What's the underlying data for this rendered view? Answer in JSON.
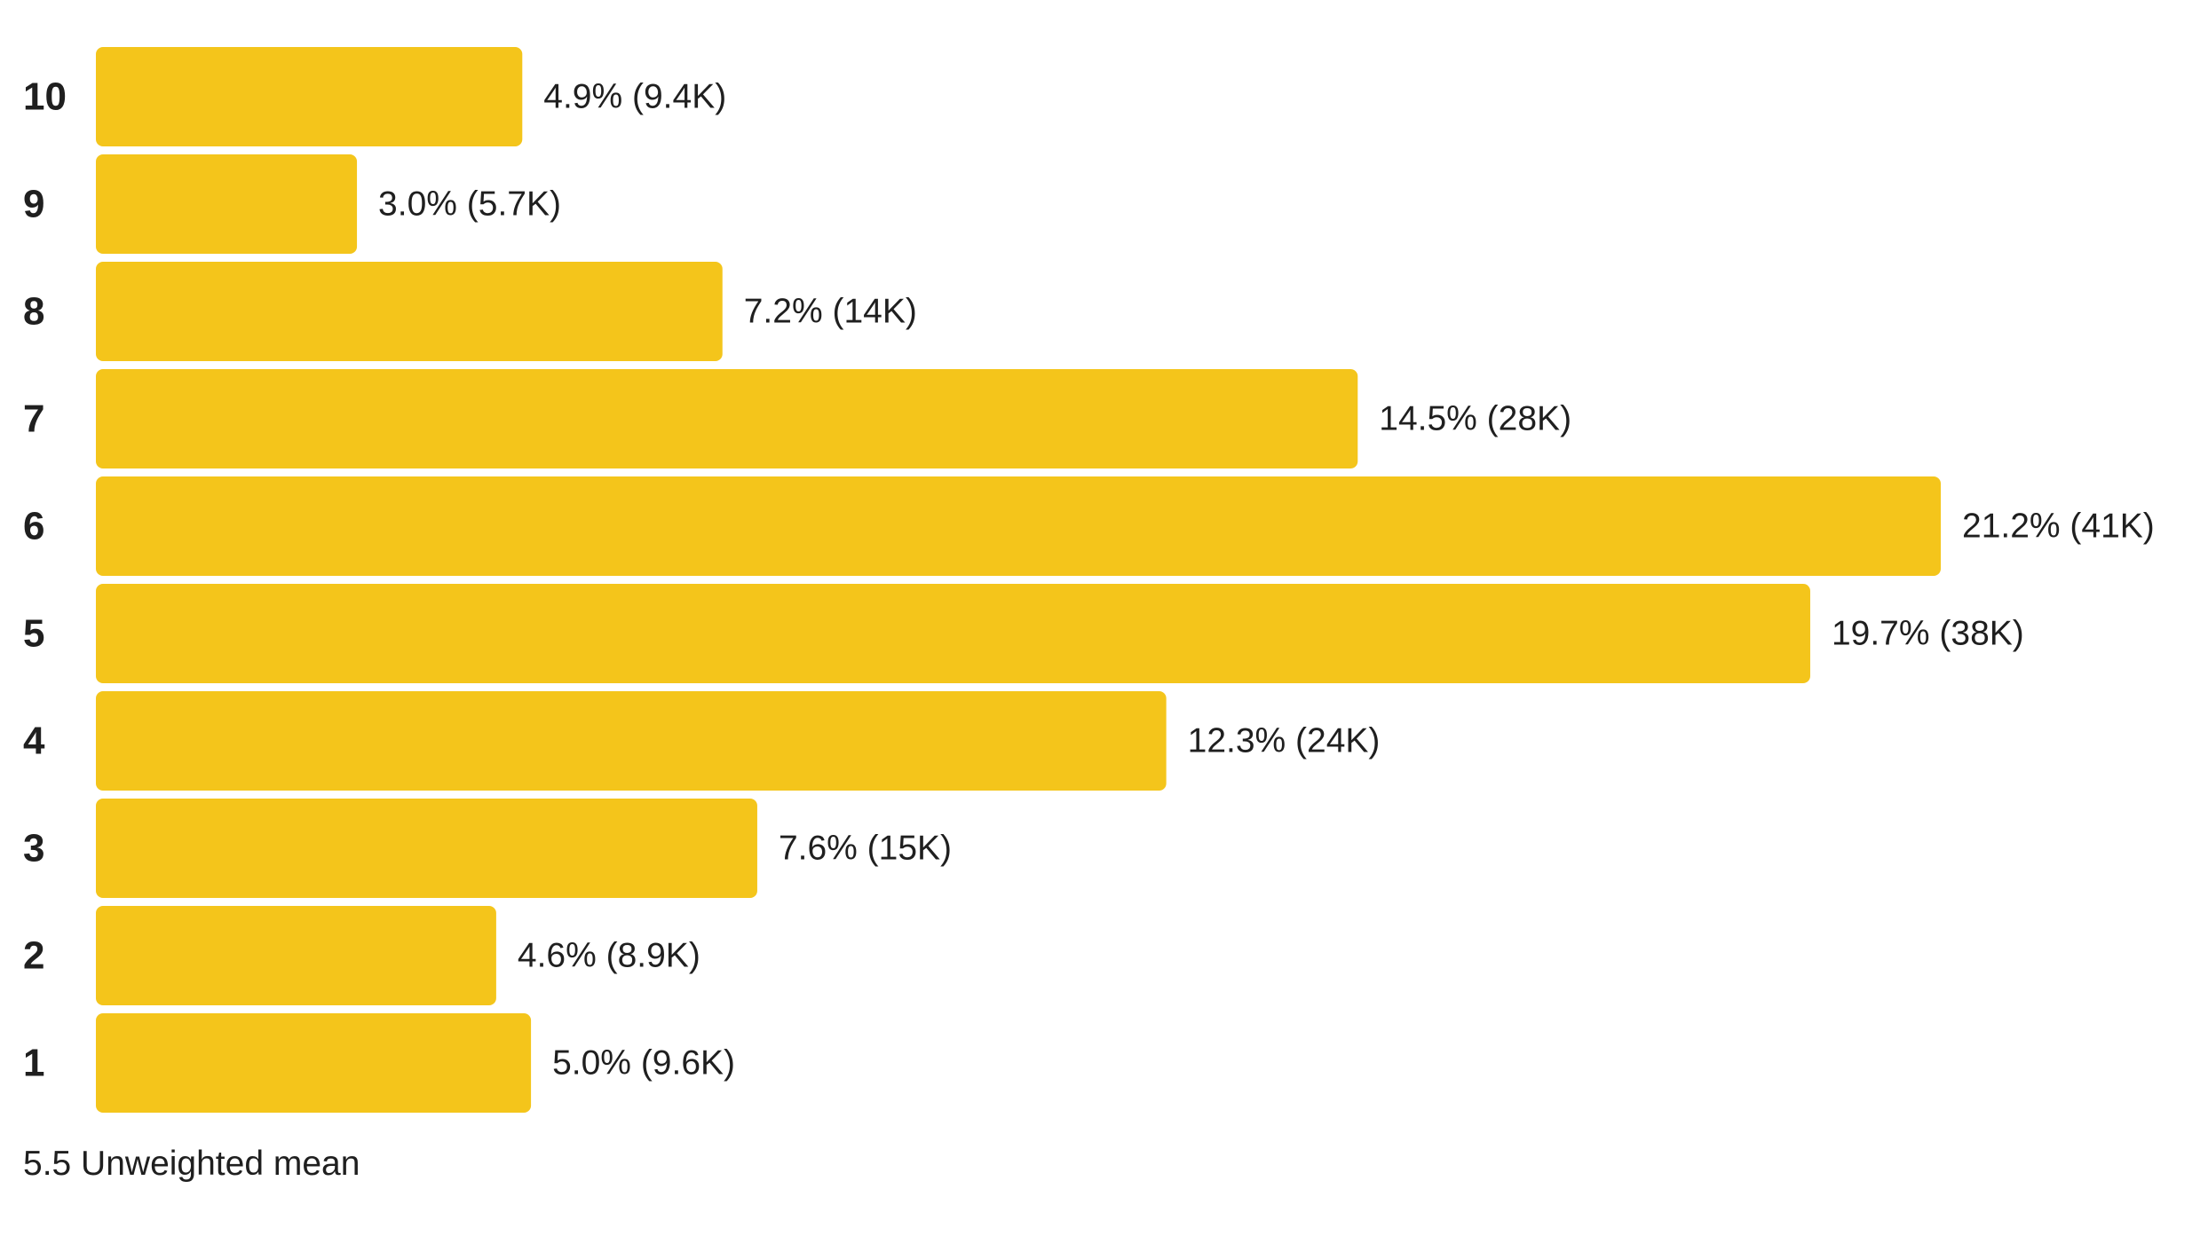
{
  "chart_data": {
    "type": "bar",
    "orientation": "horizontal",
    "categories": [
      "10",
      "9",
      "8",
      "7",
      "6",
      "5",
      "4",
      "3",
      "2",
      "1"
    ],
    "values": [
      4.9,
      3.0,
      7.2,
      14.5,
      21.2,
      19.7,
      12.3,
      7.6,
      4.6,
      5.0
    ],
    "value_labels": [
      "4.9% (9.4K)",
      "3.0% (5.7K)",
      "7.2% (14K)",
      "14.5% (28K)",
      "21.2% (41K)",
      "19.7% (38K)",
      "12.3% (24K)",
      "7.6% (15K)",
      "4.6% (8.9K)",
      "5.0% (9.6K)"
    ],
    "bar_color": "#F4C51B",
    "grid": false,
    "legend": "none",
    "xlim": [
      0,
      21.2
    ]
  },
  "footer": {
    "mean_text": "5.5 Unweighted mean"
  }
}
